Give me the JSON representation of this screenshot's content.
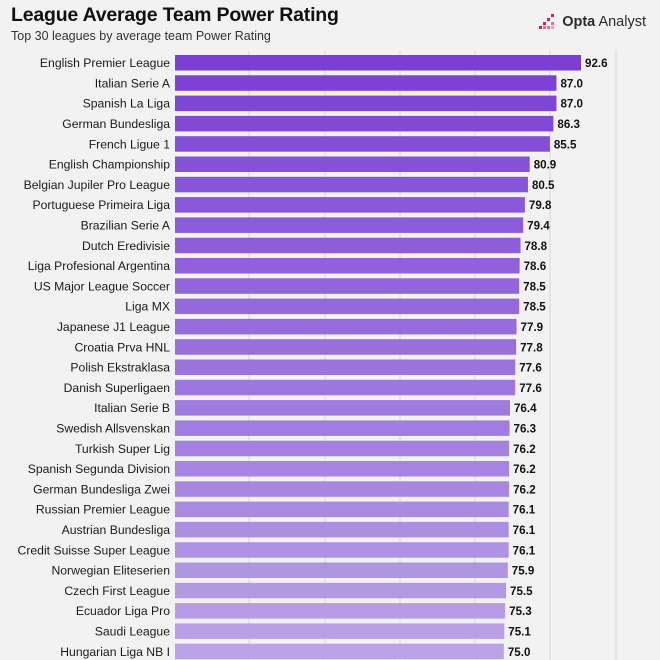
{
  "header": {
    "title": "League Average Team Power Rating",
    "subtitle": "Top 30 leagues by average team Power Rating",
    "brand_bold": "Opta",
    "brand_light": " Analyst"
  },
  "colors": {
    "bar_top": "#7b3fd4",
    "bar_bottom": "#b9a3e6",
    "background": "#f2f2f2",
    "grid": "#d6d6d6",
    "brand_icon": "#e0185a"
  },
  "chart_data": {
    "type": "bar",
    "orientation": "horizontal",
    "title": "League Average Team Power Rating",
    "subtitle": "Top 30 leagues by average team Power Rating",
    "xlim": [
      0,
      100
    ],
    "grid": true,
    "categories": [
      "English Premier League",
      "Italian Serie A",
      "Spanish La Liga",
      "German Bundesliga",
      "French Ligue 1",
      "English Championship",
      "Belgian Jupiler Pro League",
      "Portuguese Primeira Liga",
      "Brazilian Serie A",
      "Dutch Eredivisie",
      "Liga Profesional Argentina",
      "US Major League Soccer",
      "Liga MX",
      "Japanese J1 League",
      "Croatia Prva HNL",
      "Polish Ekstraklasa",
      "Danish Superligaen",
      "Italian Serie B",
      "Swedish Allsvenskan",
      "Turkish Super Lig",
      "Spanish Segunda Division",
      "German Bundesliga Zwei",
      "Russian Premier League",
      "Austrian Bundesliga",
      "Credit Suisse Super League",
      "Norwegian Eliteserien",
      "Czech First League",
      "Ecuador Liga Pro",
      "Saudi League",
      "Hungarian Liga NB I"
    ],
    "values": [
      92.6,
      87.0,
      87.0,
      86.3,
      85.5,
      80.9,
      80.5,
      79.8,
      79.4,
      78.8,
      78.6,
      78.5,
      78.5,
      77.9,
      77.8,
      77.6,
      77.6,
      76.4,
      76.3,
      76.2,
      76.2,
      76.2,
      76.1,
      76.1,
      76.1,
      75.9,
      75.5,
      75.3,
      75.1,
      75.0
    ],
    "value_labels": [
      "92.6",
      "87.0",
      "87.0",
      "86.3",
      "85.5",
      "80.9",
      "80.5",
      "79.8",
      "79.4",
      "78.8",
      "78.6",
      "78.5",
      "78.5",
      "77.9",
      "77.8",
      "77.6",
      "77.6",
      "76.4",
      "76.3",
      "76.2",
      "76.2",
      "76.2",
      "76.1",
      "76.1",
      "76.1",
      "75.9",
      "75.5",
      "75.3",
      "75.1",
      "75.0"
    ]
  }
}
